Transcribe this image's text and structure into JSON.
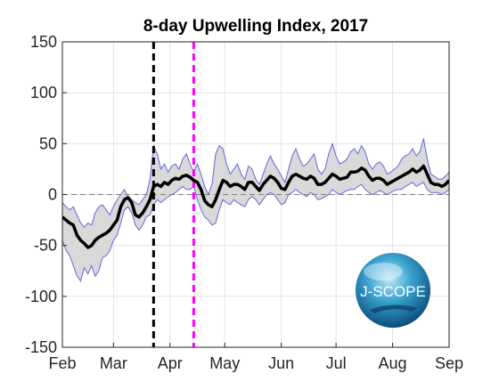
{
  "chart_data": {
    "type": "line",
    "title": "8-day Upwelling Index, 2017",
    "xlabel": "",
    "ylabel": "",
    "x_tick_labels": [
      "Feb",
      "Mar",
      "Apr",
      "May",
      "Jun",
      "Jul",
      "Aug",
      "Sep"
    ],
    "y_ticks": [
      150,
      100,
      50,
      0,
      -50,
      -100,
      -150
    ],
    "ylim": [
      -150,
      150
    ],
    "x_range_days": [
      0,
      212
    ],
    "grid": true,
    "zero_line": "dashed-gray",
    "vertical_markers": [
      {
        "day": 50,
        "color": "#000000",
        "style": "dashed"
      },
      {
        "day": 72,
        "color": "#ff00ff",
        "style": "dashed"
      }
    ],
    "series": [
      {
        "role": "mean",
        "color": "#000000",
        "x": [
          0,
          2,
          4,
          6,
          8,
          10,
          12,
          14,
          16,
          18,
          20,
          22,
          24,
          26,
          28,
          30,
          32,
          34,
          36,
          38,
          40,
          42,
          44,
          46,
          48,
          50,
          52,
          54,
          56,
          58,
          60,
          62,
          64,
          66,
          68,
          70,
          72,
          74,
          76,
          78,
          80,
          82,
          84,
          86,
          88,
          90,
          92,
          94,
          96,
          98,
          100,
          102,
          104,
          106,
          108,
          110,
          112,
          114,
          116,
          118,
          120,
          122,
          124,
          126,
          128,
          130,
          132,
          134,
          136,
          138,
          140,
          142,
          144,
          146,
          148,
          150,
          152,
          154,
          156,
          158,
          160,
          162,
          164,
          166,
          168,
          170,
          172,
          174,
          176,
          178,
          180,
          182,
          184,
          186,
          188,
          190,
          192,
          194,
          196,
          198,
          200,
          202,
          204,
          206,
          208,
          210,
          212
        ],
        "y": [
          -22,
          -25,
          -28,
          -30,
          -40,
          -45,
          -48,
          -52,
          -50,
          -45,
          -42,
          -40,
          -38,
          -35,
          -30,
          -25,
          -12,
          -5,
          -3,
          -8,
          -20,
          -22,
          -18,
          -12,
          -5,
          8,
          10,
          8,
          12,
          10,
          14,
          16,
          15,
          18,
          19,
          17,
          14,
          12,
          5,
          -6,
          -10,
          -12,
          -5,
          5,
          14,
          12,
          8,
          10,
          10,
          8,
          5,
          12,
          12,
          8,
          4,
          10,
          14,
          18,
          16,
          12,
          6,
          5,
          12,
          18,
          20,
          18,
          16,
          15,
          18,
          16,
          10,
          10,
          12,
          16,
          20,
          18,
          15,
          16,
          17,
          22,
          22,
          23,
          26,
          24,
          18,
          14,
          16,
          16,
          14,
          10,
          12,
          14,
          16,
          18,
          20,
          22,
          25,
          22,
          24,
          28,
          20,
          12,
          10,
          10,
          8,
          10,
          14
        ]
      },
      {
        "role": "band-upper",
        "color": "#6666dd",
        "x": [
          0,
          2,
          4,
          6,
          8,
          10,
          12,
          14,
          16,
          18,
          20,
          22,
          24,
          26,
          28,
          30,
          32,
          34,
          36,
          38,
          40,
          42,
          44,
          46,
          48,
          50,
          52,
          54,
          56,
          58,
          60,
          62,
          64,
          66,
          68,
          70,
          72,
          74,
          76,
          78,
          80,
          82,
          84,
          86,
          88,
          90,
          92,
          94,
          96,
          98,
          100,
          102,
          104,
          106,
          108,
          110,
          112,
          114,
          116,
          118,
          120,
          122,
          124,
          126,
          128,
          130,
          132,
          134,
          136,
          138,
          140,
          142,
          144,
          146,
          148,
          150,
          152,
          154,
          156,
          158,
          160,
          162,
          164,
          166,
          168,
          170,
          172,
          174,
          176,
          178,
          180,
          182,
          184,
          186,
          188,
          190,
          192,
          194,
          196,
          198,
          200,
          202,
          204,
          206,
          208,
          210,
          212
        ],
        "y": [
          -8,
          -12,
          -15,
          -12,
          -20,
          -28,
          -32,
          -28,
          -30,
          -18,
          -12,
          -10,
          -15,
          -20,
          -12,
          -5,
          0,
          5,
          -2,
          -5,
          -8,
          -10,
          -5,
          0,
          15,
          48,
          40,
          25,
          30,
          22,
          28,
          30,
          25,
          35,
          40,
          30,
          22,
          30,
          20,
          8,
          0,
          10,
          40,
          48,
          45,
          30,
          20,
          25,
          30,
          20,
          15,
          28,
          25,
          15,
          10,
          20,
          30,
          38,
          30,
          25,
          18,
          12,
          25,
          38,
          45,
          35,
          28,
          30,
          35,
          40,
          25,
          20,
          25,
          40,
          50,
          38,
          30,
          32,
          35,
          42,
          45,
          40,
          48,
          42,
          30,
          25,
          30,
          32,
          28,
          20,
          22,
          25,
          28,
          35,
          38,
          40,
          45,
          38,
          42,
          55,
          35,
          20,
          18,
          15,
          15,
          18,
          22
        ]
      },
      {
        "role": "band-lower",
        "color": "#6666dd",
        "x": [
          0,
          2,
          4,
          6,
          8,
          10,
          12,
          14,
          16,
          18,
          20,
          22,
          24,
          26,
          28,
          30,
          32,
          34,
          36,
          38,
          40,
          42,
          44,
          46,
          48,
          50,
          52,
          54,
          56,
          58,
          60,
          62,
          64,
          66,
          68,
          70,
          72,
          74,
          76,
          78,
          80,
          82,
          84,
          86,
          88,
          90,
          92,
          94,
          96,
          98,
          100,
          102,
          104,
          106,
          108,
          110,
          112,
          114,
          116,
          118,
          120,
          122,
          124,
          126,
          128,
          130,
          132,
          134,
          136,
          138,
          140,
          142,
          144,
          146,
          148,
          150,
          152,
          154,
          156,
          158,
          160,
          162,
          164,
          166,
          168,
          170,
          172,
          174,
          176,
          178,
          180,
          182,
          184,
          186,
          188,
          190,
          192,
          194,
          196,
          198,
          200,
          202,
          204,
          206,
          208,
          210,
          212
        ],
        "y": [
          -45,
          -55,
          -60,
          -70,
          -80,
          -85,
          -72,
          -78,
          -70,
          -80,
          -75,
          -62,
          -60,
          -55,
          -45,
          -40,
          -28,
          -15,
          -12,
          -18,
          -30,
          -35,
          -30,
          -22,
          -20,
          -10,
          -5,
          -8,
          -5,
          -2,
          0,
          2,
          5,
          8,
          5,
          5,
          8,
          -5,
          -15,
          -22,
          -25,
          -30,
          -28,
          -15,
          -5,
          -8,
          -10,
          -5,
          -8,
          -10,
          -12,
          -5,
          -2,
          -5,
          -10,
          -5,
          0,
          2,
          0,
          -5,
          -10,
          -8,
          0,
          2,
          5,
          2,
          0,
          -2,
          2,
          0,
          -5,
          -4,
          -2,
          0,
          5,
          2,
          0,
          2,
          4,
          5,
          5,
          8,
          10,
          5,
          2,
          0,
          2,
          4,
          2,
          0,
          2,
          4,
          5,
          5,
          8,
          10,
          12,
          8,
          10,
          12,
          5,
          2,
          2,
          2,
          0,
          2,
          5
        ]
      }
    ]
  },
  "logo": {
    "text": "J-SCOPE",
    "icon": "j-scope-globe-logo"
  }
}
